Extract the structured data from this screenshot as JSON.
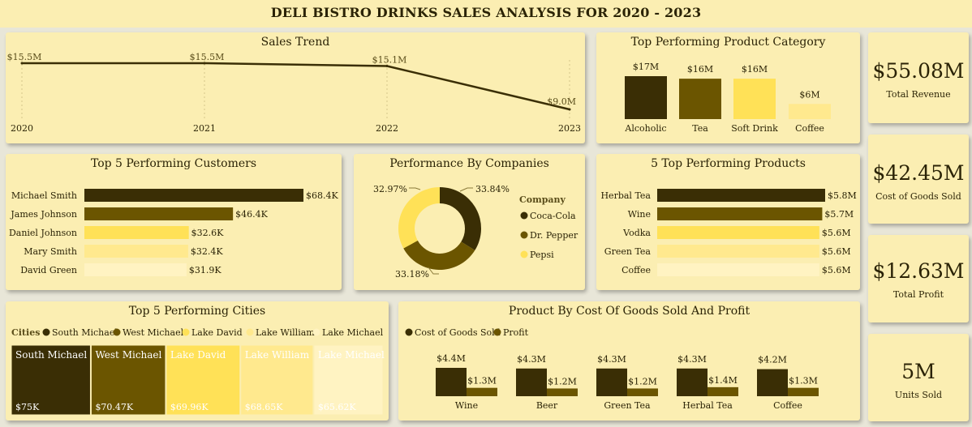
{
  "page_title": "DELI BISTRO DRINKS SALES ANALYSIS FOR 2020 - 2023",
  "colors": {
    "c1": "#3a2e05",
    "c2": "#6b5500",
    "c3": "#ffe157",
    "c4": "#ffe98e",
    "c5": "#fff3c2",
    "card_bg": "#fbeeb2"
  },
  "kpis": [
    {
      "value": "$55.08M",
      "label": "Total Revenue"
    },
    {
      "value": "$42.45M",
      "label": "Cost of Goods Sold"
    },
    {
      "value": "$12.63M",
      "label": "Total Profit"
    },
    {
      "value": "5M",
      "label": "Units Sold"
    }
  ],
  "chart_data": [
    {
      "id": "sales_trend",
      "type": "line",
      "title": "Sales Trend",
      "x": [
        "2020",
        "2021",
        "2022",
        "2023"
      ],
      "values": [
        15.5,
        15.5,
        15.1,
        9.0
      ],
      "labels": [
        "$15.5M",
        "$15.5M",
        "$15.1M",
        "$9.0M"
      ],
      "ylim": [
        0,
        16
      ]
    },
    {
      "id": "top_category",
      "type": "bar",
      "title": "Top Performing Product Category",
      "categories": [
        "Alcoholic",
        "Tea",
        "Soft Drink",
        "Coffee"
      ],
      "values": [
        17,
        16,
        16,
        6
      ],
      "labels": [
        "$17M",
        "$16M",
        "$16M",
        "$6M"
      ]
    },
    {
      "id": "top_customers",
      "type": "bar",
      "orientation": "horizontal",
      "title": "Top 5 Performing Customers",
      "categories": [
        "Michael Smith",
        "James Johnson",
        "Daniel Johnson",
        "Mary Smith",
        "David Green"
      ],
      "values": [
        68.4,
        46.4,
        32.6,
        32.4,
        31.9
      ],
      "labels": [
        "$68.4K",
        "$46.4K",
        "$32.6K",
        "$32.4K",
        "$31.9K"
      ]
    },
    {
      "id": "companies",
      "type": "pie",
      "title": "Performance By Companies",
      "legend_title": "Company",
      "categories": [
        "Coca-Cola",
        "Dr. Pepper",
        "Pepsi"
      ],
      "values": [
        33.84,
        33.18,
        32.97
      ],
      "labels": [
        "33.84%",
        "33.18%",
        "32.97%"
      ]
    },
    {
      "id": "top_products",
      "type": "bar",
      "orientation": "horizontal",
      "title": "5 Top Performing Products",
      "categories": [
        "Herbal Tea",
        "Wine",
        "Vodka",
        "Green Tea",
        "Coffee"
      ],
      "values": [
        5.8,
        5.7,
        5.6,
        5.6,
        5.6
      ],
      "labels": [
        "$5.8M",
        "$5.7M",
        "$5.6M",
        "$5.6M",
        "$5.6M"
      ]
    },
    {
      "id": "top_cities",
      "type": "treemap",
      "title": "Top 5 Performing Cities",
      "legend_title": "Cities",
      "categories": [
        "South Michael",
        "West Michael",
        "Lake David",
        "Lake William",
        "Lake Michael"
      ],
      "values": [
        75,
        70.47,
        69.96,
        68.65,
        65.62
      ],
      "labels": [
        "$75K",
        "$70.47K",
        "$69.96K",
        "$68.65K",
        "$65.62K"
      ]
    },
    {
      "id": "cogs_profit",
      "type": "bar",
      "title": "Product By Cost Of Goods Sold And Profit",
      "categories": [
        "Wine",
        "Beer",
        "Green Tea",
        "Herbal Tea",
        "Coffee"
      ],
      "series": [
        {
          "name": "Cost of Goods Sold",
          "values": [
            4.4,
            4.3,
            4.3,
            4.3,
            4.2
          ],
          "labels": [
            "$4.4M",
            "$4.3M",
            "$4.3M",
            "$4.3M",
            "$4.2M"
          ]
        },
        {
          "name": "Profit",
          "values": [
            1.3,
            1.2,
            1.2,
            1.4,
            1.3
          ],
          "labels": [
            "$1.3M",
            "$1.2M",
            "$1.2M",
            "$1.4M",
            "$1.3M"
          ]
        }
      ]
    }
  ]
}
